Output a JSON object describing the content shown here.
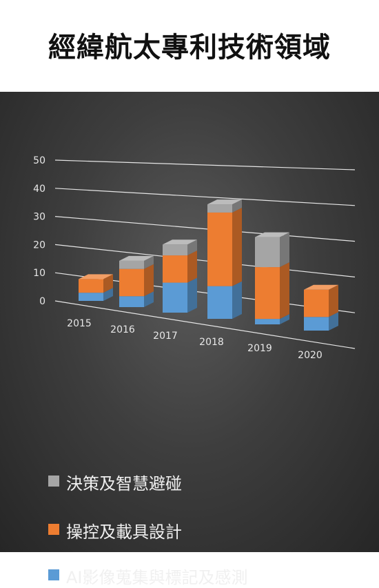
{
  "page": {
    "title": "經緯航太專利技術領域"
  },
  "chart_data": {
    "type": "bar",
    "stacked": true,
    "perspective": "3d",
    "title": "",
    "xlabel": "",
    "ylabel": "",
    "ylim": [
      0,
      50
    ],
    "yticks": [
      "0",
      "10",
      "20",
      "30",
      "40",
      "50"
    ],
    "grid": true,
    "legend_position": "bottom",
    "categories": [
      "2015",
      "2016",
      "2017",
      "2018",
      "2019",
      "2020"
    ],
    "series": [
      {
        "name": "AI影像蒐集與標記及感測",
        "color": "#5b9bd5",
        "values": [
          3,
          4,
          11,
          12,
          2,
          5
        ]
      },
      {
        "name": "操控及載具設計",
        "color": "#ed7d31",
        "values": [
          5,
          10,
          10,
          27,
          19,
          10
        ]
      },
      {
        "name": "決策及智慧避碰",
        "color": "#a5a5a5",
        "values": [
          0,
          3,
          4,
          3,
          11,
          0
        ]
      }
    ]
  },
  "legend": {
    "items": [
      {
        "name": "決策及智慧避碰",
        "color": "#a5a5a5"
      },
      {
        "name": "操控及載具設計",
        "color": "#ed7d31"
      },
      {
        "name": "AI影像蒐集與標記及感測",
        "color": "#5b9bd5"
      }
    ]
  }
}
